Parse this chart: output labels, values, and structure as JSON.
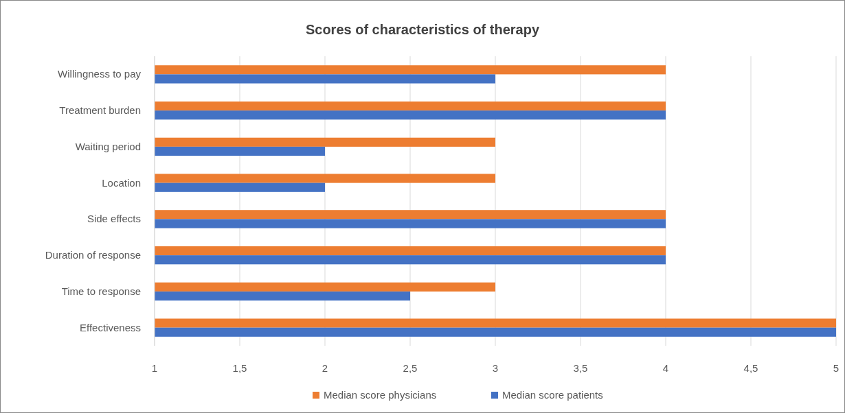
{
  "chart_data": {
    "type": "bar",
    "orientation": "horizontal",
    "title": "Scores of characteristics of therapy",
    "categories": [
      "Willingness to pay",
      "Treatment burden",
      "Waiting period",
      "Location",
      "Side effects",
      "Duration of response",
      "Time to response",
      "Effectiveness"
    ],
    "series": [
      {
        "name": "Median score physicians",
        "color": "#ed7d31",
        "values": [
          4,
          4,
          3,
          3,
          4,
          4,
          3,
          5
        ]
      },
      {
        "name": "Median score patients",
        "color": "#4472c4",
        "values": [
          3,
          4,
          2,
          2,
          4,
          4,
          2.5,
          5
        ]
      }
    ],
    "xlim": [
      1,
      5
    ],
    "xticks": [
      1,
      {
        "value": 1.5,
        "label": "1,5"
      },
      2,
      {
        "value": 2.5,
        "label": "2,5"
      },
      3,
      {
        "value": 3.5,
        "label": "3,5"
      },
      4,
      {
        "value": 4.5,
        "label": "4,5"
      },
      5
    ],
    "grid": "x",
    "legend": "bottom"
  }
}
